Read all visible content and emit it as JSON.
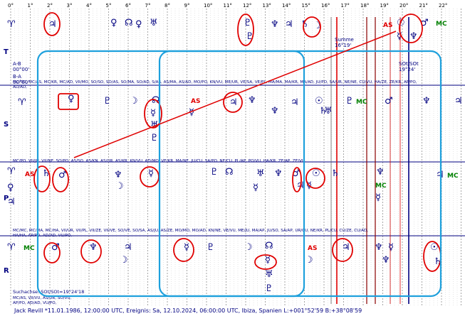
{
  "degree_scale": [
    "0°",
    "1°",
    "2°",
    "3°",
    "4°",
    "5°",
    "6°",
    "7°",
    "8°",
    "9°",
    "10°",
    "11°",
    "12°",
    "13°",
    "14°",
    "15°",
    "16°",
    "17°",
    "18°",
    "19°",
    "20°",
    "21°",
    "22°"
  ],
  "rows": {
    "T": "T",
    "S": "S",
    "P": "P",
    "R": "R"
  },
  "row_notes": {
    "a_b": "A-B",
    "a_b_val": "00°00'",
    "b_a": "B-A",
    "b_a_val": "00°00'",
    "summe": "Summe",
    "summe_val": "16°19'",
    "sot": "SOt/SOt",
    "sot_val": "19°24'"
  },
  "text_strips": {
    "s1": "MC/SO, MC/AS, MC/KR, MC/AD, VII/MO, SO/SO, SO/AS, SO/MA, SO/AD, S/AS, AS/MA, AS/AD, MO/PO, KN/VU, ME/UR, VE/SA, VE/PL, MA/MA, MA/KR, MA/AD, JU/PO, SA/UR, NE/NE, CU/VU, HA/ZE, ZE/KR, AP/PO,",
    "s1b": "AD/AD,",
    "s2": "MC/PO, VII/JU, VII/NE, SO/PO, AS/SO, AS/KN, AS/UR, AS/KR, KN/VU, AD/MO, VE/KR, MA/NE, JU/CU, SA/PO, NE/CU, PL/AP, PO/VU, HA/KR, ZE/AP, ZE/VU,",
    "s3": "MC/MC, MC/MA, MC/HA, VII/UR, VII/PL, VII/ZE, VII/VE, SO/VE, SO/SA, AS/JU, AS/ZE, MO/MO, MO/AD, KN/NE, VE/VU, ME/JU, MA/AP, JU/SO, SA/AP, UR/CU, NE/KR, PL/CU, CU/ZE, CU/AD,",
    "s3b": "HA/HA, AP/PO, AD/AD, VU/PO,",
    "s4": "MC/AS, VII/VU, AS/UR, SO/VU,",
    "s4b": "AP/PO, AD/AD, VU/PO,",
    "suchachse": "Suchachse: SOt/SOt=19°24'18"
  },
  "footer": "Jack Revill  *11.01.1986, 12:00:00 UTC, Ereignis: Sa, 12.10.2024, 06:00:00 UTC, Ibiza, Spanien  L:+001°52'59 B:+38°08'59",
  "colors": {
    "grid": "#b0b0b0",
    "navy": "#000080",
    "highlight": "#e00000",
    "box": "#1ea0dc",
    "green": "#008000"
  },
  "glyphs": {
    "aries": "♈",
    "sun": "☉",
    "moon": "☽",
    "mercury": "☿",
    "venus": "♀",
    "mars": "♂",
    "jupiter": "♃",
    "saturn": "♄",
    "uranus": "♅",
    "neptune": "♆",
    "pluto": "♇",
    "node": "☊",
    "as": "AS",
    "mc": "MC"
  }
}
